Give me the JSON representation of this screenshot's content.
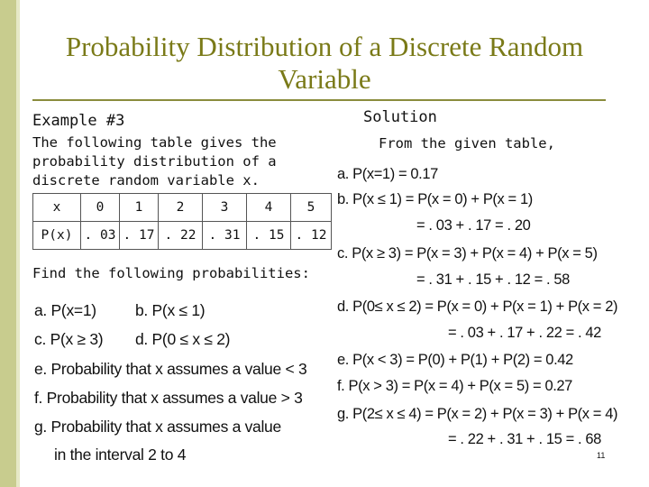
{
  "slide": {
    "title": "Probability Distribution of a Discrete Random Variable",
    "page_number": "11"
  },
  "left": {
    "example": "Example #3",
    "intro": "The following table gives the probability distribution of a discrete random variable x.",
    "table": {
      "row_x": [
        "x",
        "0",
        "1",
        "2",
        "3",
        "4",
        "5"
      ],
      "row_p": [
        "P(x)",
        ". 03",
        ". 17",
        ". 22",
        ". 31",
        ". 15",
        ". 12"
      ]
    },
    "find": "Find the following probabilities:",
    "questions": {
      "a": "a.  P(x=1)",
      "b": "b.  P(x ≤ 1)",
      "c": "c.  P(x ≥ 3)",
      "d": "d.  P(0 ≤ x ≤ 2)",
      "e": "e.  Probability that x assumes a value < 3",
      "f": "f.   Probability that x assumes a value > 3",
      "g1": "g. Probability that x assumes a value",
      "g2": "in the interval 2 to 4"
    }
  },
  "right": {
    "solution_label": "Solution",
    "given": "From the given table,",
    "lines": {
      "a": "a.  P(x=1)   = 0.17",
      "b": "b.  P(x ≤ 1) = P(x = 0) + P(x = 1)",
      "b2": "= . 03 + . 17 = . 20",
      "c": "c.  P(x ≥ 3) = P(x = 3) + P(x = 4) + P(x = 5)",
      "c2": "= . 31 + . 15 + . 12 = . 58",
      "d": "d.  P(0≤ x ≤ 2) = P(x = 0) + P(x = 1) + P(x = 2)",
      "d2": "= . 03 + . 17 + . 22 = . 42",
      "e": "e.  P(x < 3) = P(0) + P(1) + P(2) = 0.42",
      "f": "f.   P(x > 3) = P(x = 4) + P(x = 5) = 0.27",
      "g": "g.  P(2≤ x ≤ 4) = P(x = 2) + P(x = 3) + P(x = 4)",
      "g2": "= . 22 + . 31 + . 15 = . 68"
    }
  }
}
